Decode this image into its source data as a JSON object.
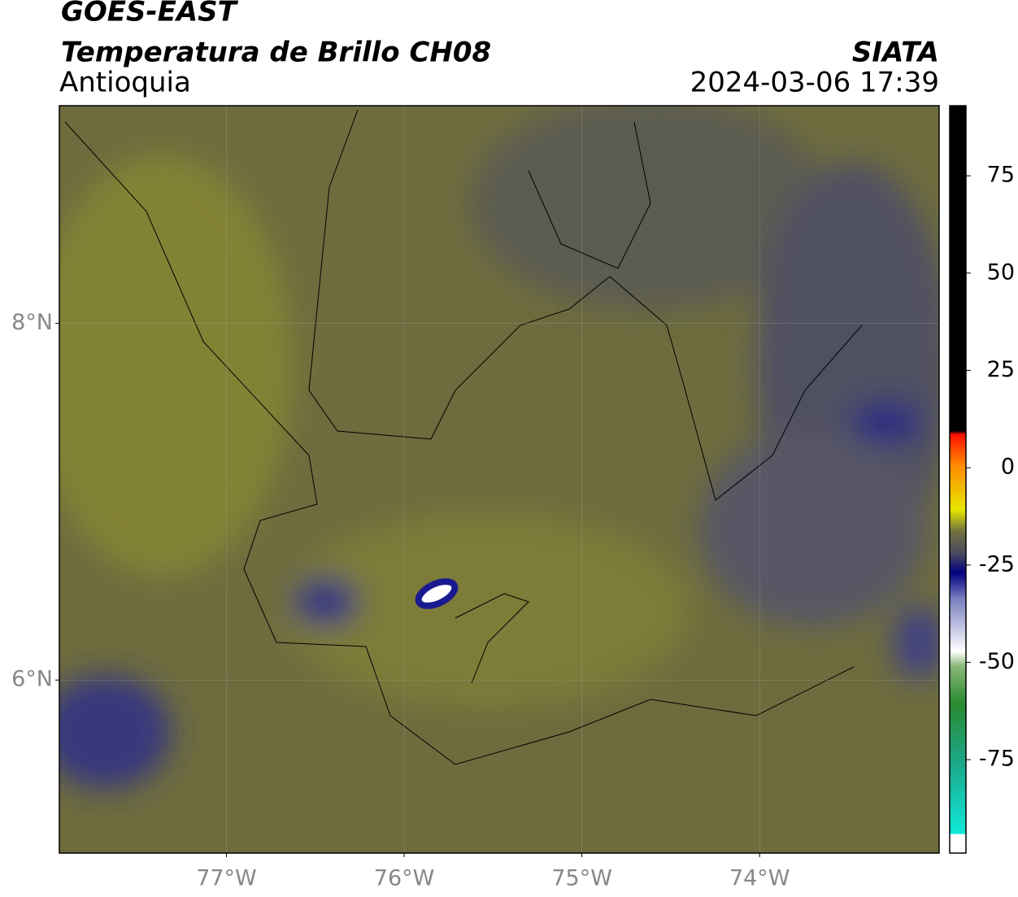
{
  "map": {
    "title": "GOES-EAST",
    "subtitle": "Temperatura de Brillo CH08",
    "region": "Antioquia",
    "source": "SIATA",
    "datetime": "2024-03-06 17:39",
    "xlim": [
      -77.94,
      -72.99
    ],
    "ylim": [
      5.03,
      9.22
    ],
    "xticks": [
      {
        "value": -77,
        "label": "77°W"
      },
      {
        "value": -76,
        "label": "76°W"
      },
      {
        "value": -75,
        "label": "75°W"
      },
      {
        "value": -74,
        "label": "74°W"
      }
    ],
    "yticks": [
      {
        "value": 6,
        "label": "6°N"
      },
      {
        "value": 8,
        "label": "8°N"
      }
    ],
    "colorbar": {
      "lim": [
        -99,
        93
      ],
      "ticks": [
        -75,
        -50,
        -25,
        0,
        25,
        50,
        75
      ]
    }
  }
}
